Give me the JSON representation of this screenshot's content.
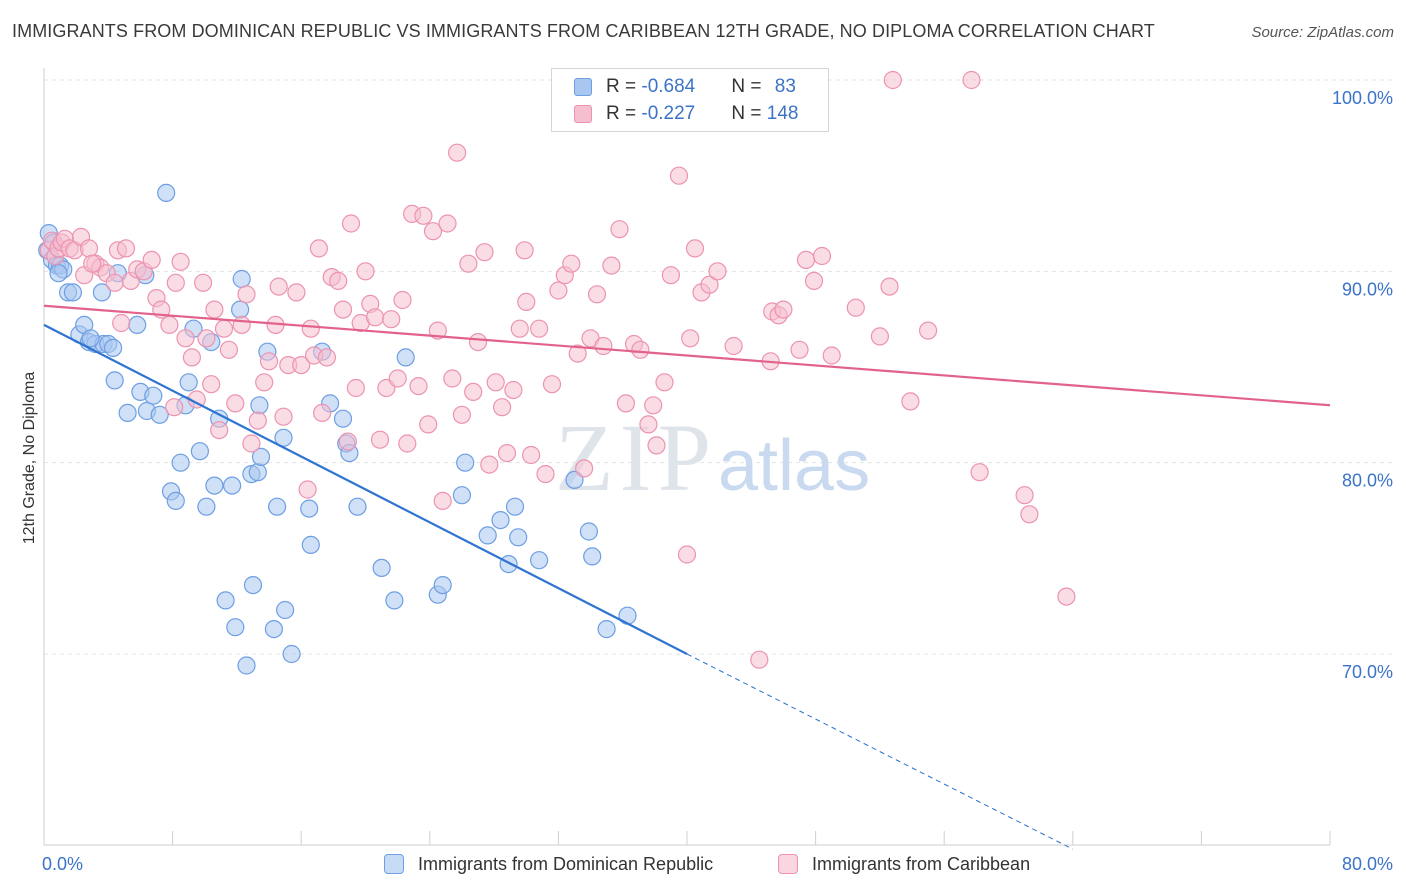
{
  "title": "IMMIGRANTS FROM DOMINICAN REPUBLIC VS IMMIGRANTS FROM CARIBBEAN 12TH GRADE, NO DIPLOMA CORRELATION CHART",
  "source": "Source: ZipAtlas.com",
  "watermark": {
    "zip": "ZIP",
    "atlas": "atlas"
  },
  "colors": {
    "blue_fill": "#a9c6f0",
    "blue_stroke": "#6d9fe3",
    "blue_line": "#2f74d0",
    "pink_fill": "#f6bfd0",
    "pink_stroke": "#ec93b0",
    "pink_line": "#e2628c",
    "axis_text": "#3b73c8"
  },
  "legend": {
    "rows": [
      {
        "r_label": "R = ",
        "r_value": "-0.684",
        "n_label": "N = ",
        "n_value": "83"
      },
      {
        "r_label": "R = ",
        "r_value": "-0.227",
        "n_label": "N = ",
        "n_value": "148"
      }
    ]
  },
  "bottom_legend": [
    "Immigrants from Dominican Republic",
    "Immigrants from Caribbean"
  ],
  "chart_data": {
    "type": "scatter",
    "title": "IMMIGRANTS FROM DOMINICAN REPUBLIC VS IMMIGRANTS FROM CARIBBEAN 12TH GRADE, NO DIPLOMA CORRELATION CHART",
    "xlabel": "",
    "ylabel": "12th Grade, No Diploma",
    "xlim": [
      0,
      80
    ],
    "ylim": [
      60,
      102
    ],
    "x_tick_labels": [
      "0.0%",
      "80.0%"
    ],
    "y_ticks": [
      70,
      80,
      90,
      100
    ],
    "y_tick_labels": [
      "70.0%",
      "80.0%",
      "90.0%",
      "100.0%"
    ],
    "grid": true,
    "legend_position": "top-center",
    "series": [
      {
        "name": "Immigrants from Dominican Republic",
        "color": "#a9c6f0",
        "trend": {
          "x": [
            0,
            40
          ],
          "y": [
            87.2,
            70.0
          ],
          "dashed_to": [
            64,
            59.8
          ]
        },
        "points": [
          [
            0.2,
            91.1
          ],
          [
            0.3,
            92.0
          ],
          [
            0.5,
            90.6
          ],
          [
            0.6,
            91.5
          ],
          [
            0.8,
            90.3
          ],
          [
            1.0,
            90.3
          ],
          [
            1.2,
            90.1
          ],
          [
            1.5,
            88.9
          ],
          [
            1.8,
            88.9
          ],
          [
            2.2,
            86.7
          ],
          [
            2.5,
            87.2
          ],
          [
            2.8,
            86.3
          ],
          [
            3.2,
            86.2
          ],
          [
            3.7,
            86.2
          ],
          [
            4.0,
            86.2
          ],
          [
            3.6,
            88.9
          ],
          [
            4.3,
            86.0
          ],
          [
            4.4,
            84.3
          ],
          [
            4.6,
            89.9
          ],
          [
            5.2,
            82.6
          ],
          [
            5.8,
            87.2
          ],
          [
            6.0,
            83.7
          ],
          [
            6.4,
            82.7
          ],
          [
            6.8,
            83.5
          ],
          [
            7.2,
            82.5
          ],
          [
            7.6,
            94.1
          ],
          [
            7.9,
            78.5
          ],
          [
            8.2,
            78.0
          ],
          [
            8.5,
            80.0
          ],
          [
            8.8,
            83.0
          ],
          [
            9.0,
            84.2
          ],
          [
            9.3,
            87.0
          ],
          [
            9.7,
            80.6
          ],
          [
            10.1,
            77.7
          ],
          [
            10.4,
            86.3
          ],
          [
            10.6,
            78.8
          ],
          [
            10.9,
            82.3
          ],
          [
            11.3,
            72.8
          ],
          [
            11.7,
            78.8
          ],
          [
            11.9,
            71.4
          ],
          [
            12.2,
            88.0
          ],
          [
            12.3,
            89.6
          ],
          [
            12.6,
            69.4
          ],
          [
            12.9,
            79.4
          ],
          [
            13.0,
            73.6
          ],
          [
            13.3,
            79.5
          ],
          [
            13.4,
            83.0
          ],
          [
            13.5,
            80.3
          ],
          [
            13.9,
            85.8
          ],
          [
            14.3,
            71.3
          ],
          [
            14.5,
            77.7
          ],
          [
            14.9,
            81.3
          ],
          [
            15.0,
            72.3
          ],
          [
            15.4,
            70.0
          ],
          [
            16.5,
            77.6
          ],
          [
            16.6,
            75.7
          ],
          [
            17.3,
            85.8
          ],
          [
            17.8,
            83.1
          ],
          [
            18.6,
            82.3
          ],
          [
            18.8,
            81.0
          ],
          [
            19.0,
            80.5
          ],
          [
            19.5,
            77.7
          ],
          [
            21.0,
            74.5
          ],
          [
            21.8,
            72.8
          ],
          [
            22.5,
            85.5
          ],
          [
            24.5,
            73.1
          ],
          [
            24.8,
            73.6
          ],
          [
            26.0,
            78.3
          ],
          [
            26.2,
            80.0
          ],
          [
            27.6,
            76.2
          ],
          [
            28.4,
            77.0
          ],
          [
            28.9,
            74.7
          ],
          [
            29.3,
            77.7
          ],
          [
            29.5,
            76.1
          ],
          [
            30.8,
            74.9
          ],
          [
            33.0,
            79.1
          ],
          [
            33.9,
            76.4
          ],
          [
            34.1,
            75.1
          ],
          [
            35.0,
            71.3
          ],
          [
            36.3,
            72.0
          ],
          [
            6.3,
            89.8
          ],
          [
            0.9,
            89.9
          ],
          [
            2.9,
            86.5
          ]
        ]
      },
      {
        "name": "Immigrants from Caribbean",
        "color": "#f6bfd0",
        "trend": {
          "x": [
            0,
            80
          ],
          "y": [
            88.2,
            83.0
          ]
        },
        "points": [
          [
            0.3,
            91.1
          ],
          [
            0.5,
            91.6
          ],
          [
            0.7,
            90.8
          ],
          [
            0.9,
            91.2
          ],
          [
            1.1,
            91.5
          ],
          [
            1.3,
            91.7
          ],
          [
            1.6,
            91.2
          ],
          [
            1.9,
            91.1
          ],
          [
            2.3,
            91.8
          ],
          [
            2.5,
            89.8
          ],
          [
            2.8,
            91.2
          ],
          [
            3.2,
            90.4
          ],
          [
            3.5,
            90.2
          ],
          [
            3.9,
            89.9
          ],
          [
            4.4,
            89.4
          ],
          [
            4.6,
            91.1
          ],
          [
            4.8,
            87.3
          ],
          [
            5.1,
            91.2
          ],
          [
            5.4,
            89.5
          ],
          [
            5.8,
            90.1
          ],
          [
            6.2,
            90.0
          ],
          [
            6.7,
            90.6
          ],
          [
            7.0,
            88.6
          ],
          [
            7.3,
            88.0
          ],
          [
            7.8,
            87.2
          ],
          [
            8.2,
            89.4
          ],
          [
            8.5,
            90.5
          ],
          [
            8.8,
            86.5
          ],
          [
            9.2,
            85.5
          ],
          [
            9.5,
            83.3
          ],
          [
            9.9,
            89.4
          ],
          [
            10.1,
            86.5
          ],
          [
            10.4,
            84.1
          ],
          [
            10.6,
            88.0
          ],
          [
            10.9,
            81.7
          ],
          [
            11.2,
            87.0
          ],
          [
            11.5,
            85.9
          ],
          [
            11.9,
            83.1
          ],
          [
            12.3,
            87.2
          ],
          [
            12.6,
            88.8
          ],
          [
            12.9,
            81.0
          ],
          [
            13.3,
            82.2
          ],
          [
            13.7,
            84.2
          ],
          [
            14.0,
            85.3
          ],
          [
            14.4,
            87.2
          ],
          [
            14.6,
            89.2
          ],
          [
            14.9,
            82.4
          ],
          [
            15.2,
            85.1
          ],
          [
            15.7,
            88.9
          ],
          [
            16.0,
            85.1
          ],
          [
            16.4,
            78.6
          ],
          [
            16.8,
            85.6
          ],
          [
            17.1,
            91.2
          ],
          [
            17.3,
            82.6
          ],
          [
            17.6,
            85.5
          ],
          [
            17.9,
            89.7
          ],
          [
            18.3,
            89.5
          ],
          [
            18.6,
            88.0
          ],
          [
            18.9,
            81.1
          ],
          [
            19.1,
            92.5
          ],
          [
            19.4,
            83.9
          ],
          [
            19.7,
            87.3
          ],
          [
            20.0,
            90.0
          ],
          [
            20.3,
            88.3
          ],
          [
            20.6,
            87.6
          ],
          [
            20.9,
            81.2
          ],
          [
            21.3,
            83.9
          ],
          [
            21.6,
            87.5
          ],
          [
            22.0,
            84.4
          ],
          [
            22.3,
            88.5
          ],
          [
            22.6,
            81.0
          ],
          [
            22.9,
            93.0
          ],
          [
            23.3,
            84.0
          ],
          [
            23.6,
            92.9
          ],
          [
            23.9,
            82.0
          ],
          [
            24.2,
            92.1
          ],
          [
            24.5,
            86.9
          ],
          [
            24.8,
            78.0
          ],
          [
            25.1,
            92.5
          ],
          [
            25.4,
            84.4
          ],
          [
            25.7,
            96.2
          ],
          [
            26.0,
            82.5
          ],
          [
            26.4,
            90.4
          ],
          [
            26.7,
            83.7
          ],
          [
            27.0,
            86.3
          ],
          [
            27.4,
            91.0
          ],
          [
            27.7,
            79.9
          ],
          [
            28.1,
            84.2
          ],
          [
            28.5,
            82.9
          ],
          [
            28.8,
            80.5
          ],
          [
            29.2,
            83.8
          ],
          [
            29.6,
            87.0
          ],
          [
            30.0,
            88.4
          ],
          [
            30.3,
            80.4
          ],
          [
            30.8,
            87.0
          ],
          [
            31.2,
            79.4
          ],
          [
            31.6,
            84.1
          ],
          [
            32.0,
            89.0
          ],
          [
            32.4,
            89.8
          ],
          [
            32.8,
            90.4
          ],
          [
            33.2,
            85.7
          ],
          [
            33.6,
            79.7
          ],
          [
            34.0,
            86.5
          ],
          [
            34.4,
            88.8
          ],
          [
            34.8,
            86.1
          ],
          [
            35.3,
            90.3
          ],
          [
            35.8,
            92.2
          ],
          [
            36.2,
            83.1
          ],
          [
            36.7,
            86.2
          ],
          [
            37.1,
            85.9
          ],
          [
            37.6,
            82.0
          ],
          [
            38.1,
            80.9
          ],
          [
            38.6,
            84.2
          ],
          [
            39.0,
            89.8
          ],
          [
            39.5,
            95.0
          ],
          [
            40.0,
            75.2
          ],
          [
            40.5,
            91.2
          ],
          [
            40.9,
            88.9
          ],
          [
            41.4,
            89.3
          ],
          [
            41.9,
            90.0
          ],
          [
            42.9,
            86.1
          ],
          [
            44.5,
            69.7
          ],
          [
            45.3,
            87.9
          ],
          [
            45.7,
            87.7
          ],
          [
            46.0,
            88.0
          ],
          [
            47.0,
            85.9
          ],
          [
            47.4,
            90.6
          ],
          [
            47.9,
            89.5
          ],
          [
            48.4,
            90.8
          ],
          [
            49.0,
            85.6
          ],
          [
            50.5,
            88.1
          ],
          [
            52.0,
            86.6
          ],
          [
            52.6,
            89.2
          ],
          [
            53.9,
            83.2
          ],
          [
            55.0,
            86.9
          ],
          [
            58.2,
            79.5
          ],
          [
            61.0,
            78.3
          ],
          [
            61.3,
            77.3
          ],
          [
            63.6,
            73.0
          ],
          [
            52.8,
            100.0
          ],
          [
            57.7,
            100.0
          ],
          [
            40.2,
            86.5
          ],
          [
            45.2,
            85.3
          ],
          [
            37.9,
            83.0
          ],
          [
            29.9,
            91.1
          ],
          [
            16.6,
            87.0
          ],
          [
            3.0,
            90.4
          ],
          [
            8.1,
            82.9
          ]
        ]
      }
    ]
  }
}
